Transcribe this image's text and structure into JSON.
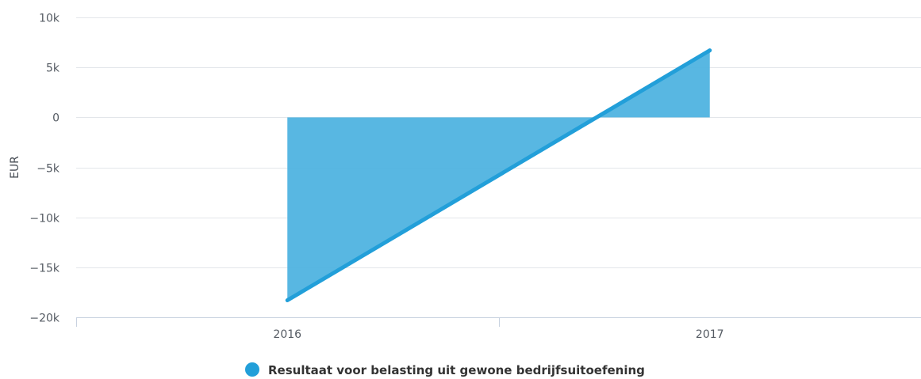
{
  "chart_data": {
    "type": "area",
    "title": "",
    "xlabel": "",
    "ylabel": "EUR",
    "categories": [
      "2016",
      "2017"
    ],
    "series": [
      {
        "name": "Resultaat voor belasting uit gewone bedrijfsuitoefening",
        "values": [
          -18300,
          6700
        ],
        "color": "#229fd9",
        "fill_color": "#4fb3e0"
      }
    ],
    "ylim": [
      -20000,
      10000
    ],
    "yticks": [
      10000,
      5000,
      0,
      -5000,
      -10000,
      -15000,
      -20000
    ],
    "ytick_labels": [
      "10k",
      "5k",
      "0",
      "−5k",
      "−10k",
      "−15k",
      "−20k"
    ],
    "grid": true,
    "legend_position": "bottom-center"
  }
}
